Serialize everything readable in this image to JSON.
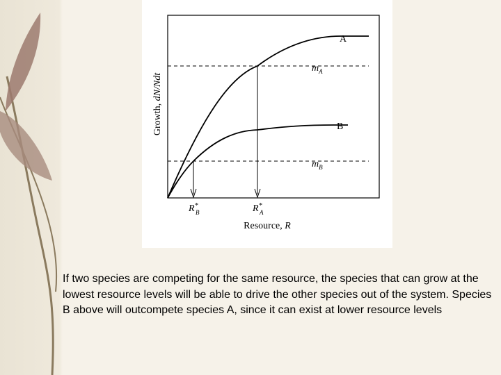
{
  "figure": {
    "y_axis_label": {
      "text": "Growth, ",
      "italic": "dN/Ndt"
    },
    "x_axis_label": {
      "text": "Resource, ",
      "italic": "R"
    },
    "curves": [
      {
        "label": "A"
      },
      {
        "label": "B"
      }
    ],
    "thresholds": [
      {
        "label": "m",
        "subscript": "A"
      },
      {
        "label": "m",
        "subscript": "B"
      }
    ],
    "markers": [
      {
        "label": "R",
        "superscript": "*",
        "subscript": "B"
      },
      {
        "label": "R",
        "superscript": "*",
        "subscript": "A"
      }
    ]
  },
  "caption": "If two species are competing for the same resource, the species that can grow at the lowest resource levels will be able to drive the other species out of the system. Species B above will outcompete species A, since it can exist at lower resource levels"
}
